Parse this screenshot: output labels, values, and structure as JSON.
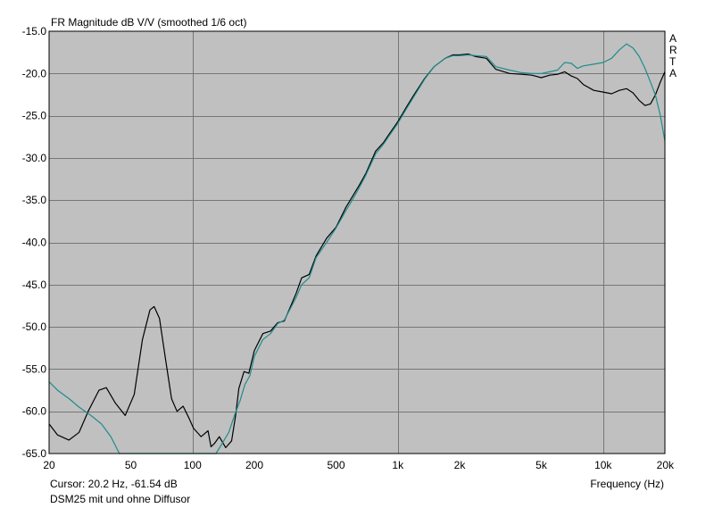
{
  "chart_data": {
    "type": "line",
    "title": "FR Magnitude dB V/V (smoothed 1/6 oct)",
    "xlabel": "Frequency (Hz)",
    "ylabel": "",
    "x_scale": "log",
    "xlim": [
      20,
      20000
    ],
    "ylim": [
      -65,
      -15
    ],
    "x_ticks": [
      {
        "value": 20,
        "label": "20"
      },
      {
        "value": 50,
        "label": "50"
      },
      {
        "value": 100,
        "label": "100"
      },
      {
        "value": 200,
        "label": "200"
      },
      {
        "value": 500,
        "label": "500"
      },
      {
        "value": 1000,
        "label": "1k"
      },
      {
        "value": 2000,
        "label": "2k"
      },
      {
        "value": 5000,
        "label": "5k"
      },
      {
        "value": 10000,
        "label": "10k"
      },
      {
        "value": 20000,
        "label": "20k"
      }
    ],
    "x_grid": [
      100,
      1000,
      10000
    ],
    "y_ticks": [
      {
        "value": -15,
        "label": "-15.0"
      },
      {
        "value": -20,
        "label": "-20.0"
      },
      {
        "value": -25,
        "label": "-25.0"
      },
      {
        "value": -30,
        "label": "-30.0"
      },
      {
        "value": -35,
        "label": "-35.0"
      },
      {
        "value": -40,
        "label": "-40.0"
      },
      {
        "value": -45,
        "label": "-45.0"
      },
      {
        "value": -50,
        "label": "-50.0"
      },
      {
        "value": -55,
        "label": "-55.0"
      },
      {
        "value": -60,
        "label": "-60.0"
      },
      {
        "value": -65,
        "label": "-65.0"
      }
    ],
    "grid": true,
    "side_label": [
      "A",
      "R",
      "T",
      "A"
    ],
    "cursor_text": "Cursor: 20.2 Hz, -61.54 dB",
    "caption": "DSM25 mit und ohne Diffusor",
    "series": [
      {
        "color": "#000000",
        "points": [
          [
            20,
            -61.5
          ],
          [
            22,
            -62.8
          ],
          [
            25,
            -63.4
          ],
          [
            28,
            -62.5
          ],
          [
            31,
            -60.0
          ],
          [
            35,
            -57.5
          ],
          [
            38,
            -57.2
          ],
          [
            42,
            -59.0
          ],
          [
            47,
            -60.5
          ],
          [
            52,
            -58.0
          ],
          [
            57,
            -51.5
          ],
          [
            62,
            -48.0
          ],
          [
            65,
            -47.6
          ],
          [
            69,
            -49.0
          ],
          [
            74,
            -54.0
          ],
          [
            79,
            -58.5
          ],
          [
            84,
            -60.0
          ],
          [
            90,
            -59.4
          ],
          [
            96,
            -60.8
          ],
          [
            101,
            -62.0
          ],
          [
            110,
            -63.0
          ],
          [
            119,
            -62.3
          ],
          [
            123,
            -64.2
          ],
          [
            128,
            -63.8
          ],
          [
            135,
            -63.0
          ],
          [
            145,
            -64.3
          ],
          [
            155,
            -63.5
          ],
          [
            162,
            -60.5
          ],
          [
            168,
            -57.3
          ],
          [
            178,
            -55.3
          ],
          [
            188,
            -55.5
          ],
          [
            200,
            -52.8
          ],
          [
            220,
            -50.8
          ],
          [
            240,
            -50.5
          ],
          [
            260,
            -49.5
          ],
          [
            280,
            -49.3
          ],
          [
            300,
            -47.6
          ],
          [
            320,
            -46.0
          ],
          [
            340,
            -44.2
          ],
          [
            370,
            -43.8
          ],
          [
            400,
            -41.6
          ],
          [
            450,
            -39.5
          ],
          [
            500,
            -38.2
          ],
          [
            560,
            -35.8
          ],
          [
            600,
            -34.6
          ],
          [
            650,
            -33.2
          ],
          [
            700,
            -31.8
          ],
          [
            780,
            -29.2
          ],
          [
            850,
            -28.2
          ],
          [
            900,
            -27.3
          ],
          [
            1000,
            -25.7
          ],
          [
            1100,
            -24.0
          ],
          [
            1200,
            -22.5
          ],
          [
            1350,
            -20.6
          ],
          [
            1500,
            -19.2
          ],
          [
            1700,
            -18.2
          ],
          [
            1850,
            -17.8
          ],
          [
            2000,
            -17.8
          ],
          [
            2200,
            -17.7
          ],
          [
            2400,
            -18.0
          ],
          [
            2700,
            -18.2
          ],
          [
            3000,
            -19.5
          ],
          [
            3500,
            -20.0
          ],
          [
            4000,
            -20.1
          ],
          [
            4500,
            -20.2
          ],
          [
            5000,
            -20.5
          ],
          [
            5500,
            -20.2
          ],
          [
            6000,
            -20.1
          ],
          [
            6500,
            -19.8
          ],
          [
            7000,
            -20.3
          ],
          [
            7500,
            -20.6
          ],
          [
            8000,
            -21.3
          ],
          [
            9000,
            -22.0
          ],
          [
            10000,
            -22.2
          ],
          [
            11000,
            -22.4
          ],
          [
            12000,
            -22.0
          ],
          [
            13000,
            -21.8
          ],
          [
            14000,
            -22.3
          ],
          [
            15000,
            -23.2
          ],
          [
            16000,
            -23.8
          ],
          [
            17000,
            -23.6
          ],
          [
            18000,
            -22.5
          ],
          [
            19000,
            -21.0
          ],
          [
            20000,
            -19.8
          ]
        ]
      },
      {
        "color": "#1f8c8c",
        "points": [
          [
            20,
            -56.5
          ],
          [
            22,
            -57.5
          ],
          [
            25,
            -58.5
          ],
          [
            28,
            -59.5
          ],
          [
            32,
            -60.5
          ],
          [
            36,
            -61.5
          ],
          [
            40,
            -63.0
          ],
          [
            44,
            -65.0
          ],
          [
            130,
            -65.0
          ],
          [
            138,
            -64.0
          ],
          [
            150,
            -62.5
          ],
          [
            160,
            -60.5
          ],
          [
            170,
            -58.8
          ],
          [
            180,
            -56.8
          ],
          [
            190,
            -55.8
          ],
          [
            200,
            -53.5
          ],
          [
            220,
            -51.5
          ],
          [
            240,
            -50.8
          ],
          [
            260,
            -49.6
          ],
          [
            280,
            -49.2
          ],
          [
            300,
            -47.8
          ],
          [
            320,
            -46.5
          ],
          [
            340,
            -45.0
          ],
          [
            370,
            -44.2
          ],
          [
            400,
            -41.8
          ],
          [
            450,
            -40.0
          ],
          [
            500,
            -38.3
          ],
          [
            560,
            -36.2
          ],
          [
            600,
            -35.0
          ],
          [
            650,
            -33.5
          ],
          [
            700,
            -32.0
          ],
          [
            780,
            -29.5
          ],
          [
            850,
            -28.4
          ],
          [
            900,
            -27.5
          ],
          [
            1000,
            -25.9
          ],
          [
            1100,
            -24.2
          ],
          [
            1200,
            -22.7
          ],
          [
            1350,
            -20.7
          ],
          [
            1500,
            -19.2
          ],
          [
            1700,
            -18.2
          ],
          [
            1850,
            -17.9
          ],
          [
            2000,
            -17.9
          ],
          [
            2200,
            -17.8
          ],
          [
            2400,
            -17.9
          ],
          [
            2700,
            -18.0
          ],
          [
            3000,
            -19.2
          ],
          [
            3500,
            -19.6
          ],
          [
            4000,
            -19.9
          ],
          [
            4500,
            -20.0
          ],
          [
            5000,
            -20.0
          ],
          [
            5500,
            -19.8
          ],
          [
            6000,
            -19.6
          ],
          [
            6500,
            -18.7
          ],
          [
            7000,
            -18.8
          ],
          [
            7500,
            -19.4
          ],
          [
            8000,
            -19.1
          ],
          [
            9000,
            -18.9
          ],
          [
            10000,
            -18.7
          ],
          [
            11000,
            -18.2
          ],
          [
            12000,
            -17.2
          ],
          [
            13000,
            -16.5
          ],
          [
            14000,
            -17.0
          ],
          [
            15000,
            -18.0
          ],
          [
            16000,
            -19.4
          ],
          [
            17000,
            -21.0
          ],
          [
            18000,
            -22.6
          ],
          [
            19000,
            -25.0
          ],
          [
            20000,
            -28.0
          ]
        ]
      }
    ]
  }
}
